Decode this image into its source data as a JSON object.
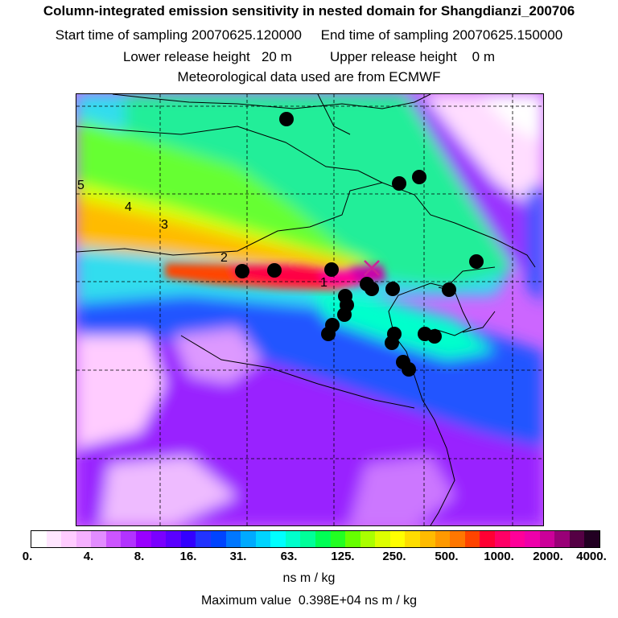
{
  "header": {
    "title": "Column-integrated emission sensitivity in nested domain for Shangdianzi_200706",
    "line2": "Start time of sampling 20070625.120000     End time of sampling 20070625.150000",
    "line3": "Lower release height   20 m          Upper release height    0 m",
    "line4": "Meteorological data used are from ECMWF"
  },
  "map": {
    "contour_labels": [
      "1",
      "2",
      "3",
      "4",
      "5"
    ],
    "receptor_marker": "x-marker",
    "station_icon": "filled-circle"
  },
  "colorbar": {
    "colors": [
      "#ffffff",
      "#ffe6ff",
      "#ffccff",
      "#f5b0ff",
      "#e28cff",
      "#cc55ff",
      "#b233ff",
      "#9900ff",
      "#7a00ff",
      "#5a00ff",
      "#3300ff",
      "#2233ff",
      "#0044ff",
      "#0077ff",
      "#00aaff",
      "#00d4ff",
      "#00ffff",
      "#00ffcc",
      "#00ff99",
      "#00ff55",
      "#22ff22",
      "#66ff00",
      "#aaff00",
      "#ddff00",
      "#ffff00",
      "#ffdd00",
      "#ffbb00",
      "#ff9900",
      "#ff7700",
      "#ff4400",
      "#ff0033",
      "#ff0066",
      "#ff0099",
      "#ee00aa",
      "#cc0099",
      "#990077",
      "#550044",
      "#220022"
    ],
    "tick_labels": [
      "0.",
      "4.",
      "8.",
      "16.",
      "31.",
      "63.",
      "125.",
      "250.",
      "500.",
      "1000.",
      "2000.",
      "4000."
    ],
    "unit_label": "ns m / kg"
  },
  "footer": {
    "max_value": "Maximum value  0.398E+04 ns m / kg"
  }
}
